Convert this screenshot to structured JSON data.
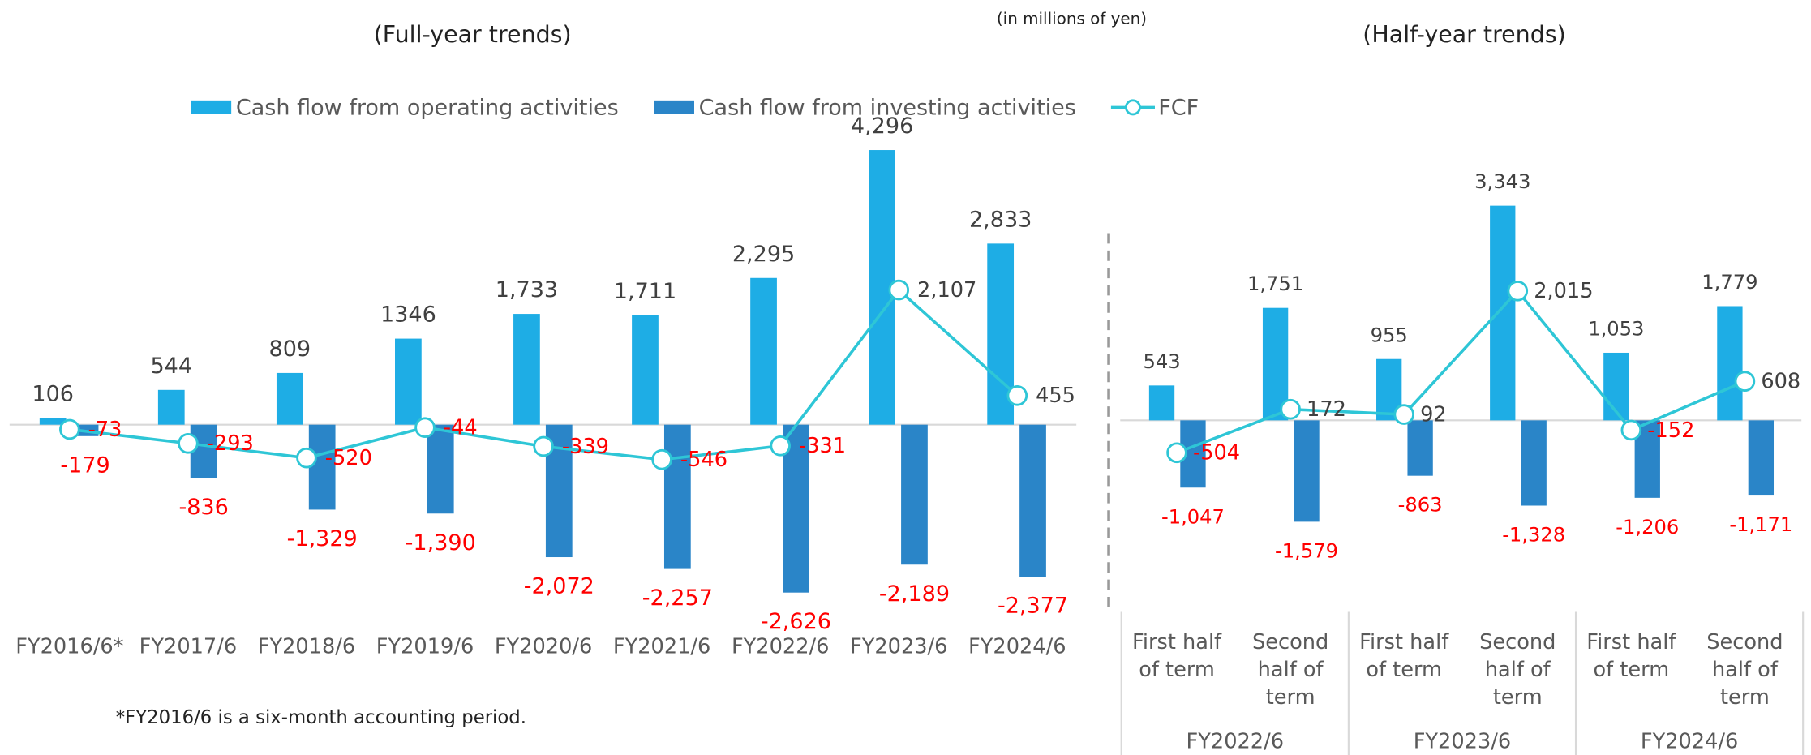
{
  "unit_note": "(in millions of yen)",
  "footnote": "*FY2016/6 is a six-month accounting period.",
  "chart_data": [
    {
      "type": "bar",
      "title": "(Full-year trends)",
      "legend": "top",
      "categories": [
        "FY2016/6*",
        "FY2017/6",
        "FY2018/6",
        "FY2019/6",
        "FY2020/6",
        "FY2021/6",
        "FY2022/6",
        "FY2023/6",
        "FY2024/6"
      ],
      "ylim": [
        -3000,
        5000
      ],
      "series": [
        {
          "name": "Cash flow from operating activities",
          "color": "#1eade5",
          "values": [
            106,
            544,
            809,
            1346,
            1733,
            1711,
            2295,
            4296,
            2833
          ],
          "value_labels": [
            "106",
            "544",
            "809",
            "1346",
            "1,733",
            "1,711",
            "2,295",
            "4,296",
            "2,833"
          ]
        },
        {
          "name": "Cash flow from investing activities",
          "color": "#2a85c8",
          "values": [
            -179,
            -836,
            -1329,
            -1390,
            -2072,
            -2257,
            -2626,
            -2189,
            -2377
          ],
          "value_labels": [
            "-179",
            "-836",
            "-1,329",
            "-1,390",
            "-2,072",
            "-2,257",
            "-2,626",
            "-2,189",
            "-2,377"
          ]
        },
        {
          "name": "FCF",
          "type": "line",
          "color": "#2ec6d6",
          "values": [
            -73,
            -293,
            -520,
            -44,
            -339,
            -546,
            -331,
            2107,
            455
          ],
          "value_labels": [
            "-73",
            "-293",
            "-520",
            "-44",
            "-339",
            "-546",
            "-331",
            "2,107",
            "455"
          ]
        }
      ]
    },
    {
      "type": "bar",
      "title": "(Half-year trends)",
      "categories": [
        "First half of term",
        "Second half of term",
        "First half of term",
        "Second half of term",
        "First half of term",
        "Second half of term"
      ],
      "group_labels": [
        "FY2022/6",
        "FY2023/6",
        "FY2024/6"
      ],
      "ylim": [
        -3000,
        5000
      ],
      "series": [
        {
          "color": "#1eade5",
          "values": [
            543,
            1751,
            955,
            3343,
            1053,
            1779
          ],
          "value_labels": [
            "543",
            "1,751",
            "955",
            "3,343",
            "1,053",
            "1,779"
          ]
        },
        {
          "color": "#2a85c8",
          "values": [
            -1047,
            -1579,
            -863,
            -1328,
            -1206,
            -1171
          ],
          "value_labels": [
            "-1,047",
            "-1,579",
            "-863",
            "-1,328",
            "-1,206",
            "-1,171"
          ]
        },
        {
          "type": "line",
          "color": "#2ec6d6",
          "values": [
            -504,
            172,
            92,
            2015,
            -152,
            608
          ],
          "value_labels": [
            "-504",
            "172",
            "92",
            "2,015",
            "-152",
            "608"
          ]
        }
      ]
    }
  ]
}
